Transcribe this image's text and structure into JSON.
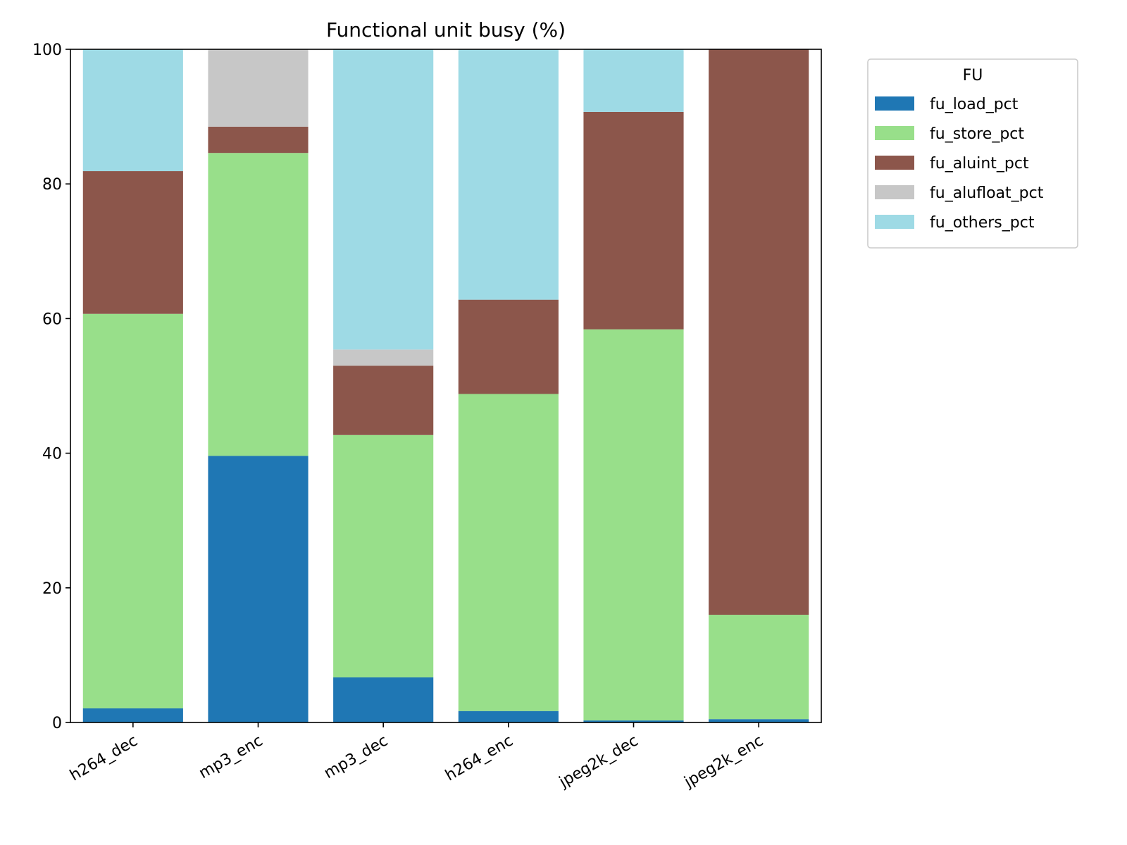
{
  "chart_data": {
    "type": "bar",
    "stacked": true,
    "title": "Functional unit busy (%)",
    "xlabel": "",
    "ylabel": "",
    "ylim": [
      0,
      100
    ],
    "yticks": [
      0,
      20,
      40,
      60,
      80,
      100
    ],
    "grid": false,
    "categories": [
      "h264_dec",
      "mp3_enc",
      "mp3_dec",
      "h264_enc",
      "jpeg2k_dec",
      "jpeg2k_enc"
    ],
    "series": [
      {
        "name": "fu_load_pct",
        "color": "#1f77b4",
        "values": [
          2.1,
          39.6,
          6.7,
          1.7,
          0.3,
          0.5
        ]
      },
      {
        "name": "fu_store_pct",
        "color": "#98df8a",
        "values": [
          58.6,
          45.0,
          36.0,
          47.1,
          58.1,
          15.5
        ]
      },
      {
        "name": "fu_aluint_pct",
        "color": "#8c564b",
        "values": [
          21.2,
          3.9,
          10.3,
          14.0,
          32.3,
          84.0
        ]
      },
      {
        "name": "fu_alufloat_pct",
        "color": "#c7c7c7",
        "values": [
          0.0,
          11.5,
          2.4,
          0.0,
          0.0,
          0.0
        ]
      },
      {
        "name": "fu_others_pct",
        "color": "#9edae5",
        "values": [
          18.1,
          0.0,
          44.6,
          37.2,
          9.3,
          0.0
        ]
      }
    ],
    "legend": {
      "title": "FU",
      "placement": "outside-top-right"
    }
  }
}
